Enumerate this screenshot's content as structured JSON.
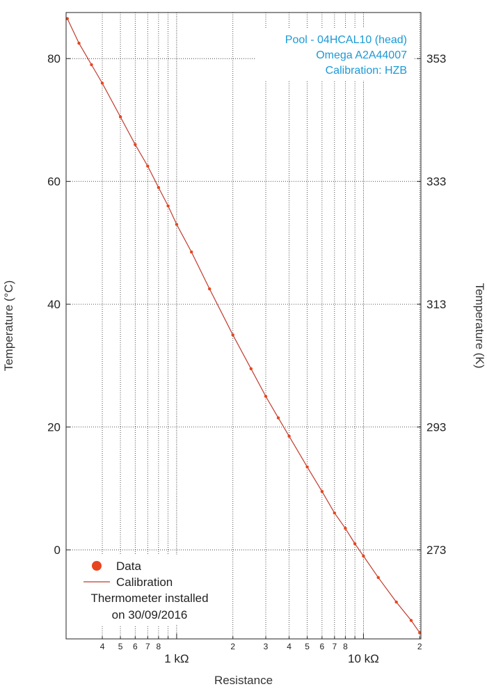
{
  "chart_data": {
    "type": "line",
    "annotations": [
      "Pool - 04HCAL10 (head)",
      "Omega A2A44007",
      "Calibration: HZB"
    ],
    "xlabel": "Resistance",
    "ylabel": "Temperature (°C)",
    "y2label": "Temperature (K)",
    "x_scale": "log",
    "xlim": [
      256,
      20300
    ],
    "ylim": [
      -14.5,
      87.5
    ],
    "grid": true,
    "legend_position": "bottom-left",
    "x_major_ticks": [
      {
        "value": 1000,
        "label": "1 kΩ"
      },
      {
        "value": 10000,
        "label": "10 kΩ"
      }
    ],
    "x_minor_ticks": [
      {
        "value": 400,
        "label": "4"
      },
      {
        "value": 500,
        "label": "5"
      },
      {
        "value": 600,
        "label": "6"
      },
      {
        "value": 700,
        "label": "7"
      },
      {
        "value": 800,
        "label": "8"
      },
      {
        "value": 900,
        "label": ""
      },
      {
        "value": 2000,
        "label": "2"
      },
      {
        "value": 3000,
        "label": "3"
      },
      {
        "value": 4000,
        "label": "4"
      },
      {
        "value": 5000,
        "label": "5"
      },
      {
        "value": 6000,
        "label": "6"
      },
      {
        "value": 7000,
        "label": "7"
      },
      {
        "value": 8000,
        "label": "8"
      },
      {
        "value": 9000,
        "label": ""
      },
      {
        "value": 20000,
        "label": "2"
      }
    ],
    "y_ticks": [
      0,
      20,
      40,
      60,
      80
    ],
    "y2_ticks": [
      {
        "value": 0,
        "label": "273"
      },
      {
        "value": 20,
        "label": "293"
      },
      {
        "value": 40,
        "label": "313"
      },
      {
        "value": 60,
        "label": "333"
      },
      {
        "value": 80,
        "label": "353"
      }
    ],
    "series": [
      {
        "name": "Data",
        "marker": "circle",
        "color": "#e8451e",
        "points": [
          {
            "x": 260,
            "y": 86.5
          },
          {
            "x": 300,
            "y": 82.5
          },
          {
            "x": 350,
            "y": 79.0
          },
          {
            "x": 400,
            "y": 76.0
          },
          {
            "x": 500,
            "y": 70.5
          },
          {
            "x": 600,
            "y": 66.0
          },
          {
            "x": 700,
            "y": 62.5
          },
          {
            "x": 800,
            "y": 59.0
          },
          {
            "x": 900,
            "y": 56.0
          },
          {
            "x": 1000,
            "y": 53.0
          },
          {
            "x": 1200,
            "y": 48.5
          },
          {
            "x": 1500,
            "y": 42.5
          },
          {
            "x": 2000,
            "y": 35.0
          },
          {
            "x": 2500,
            "y": 29.5
          },
          {
            "x": 3000,
            "y": 25.0
          },
          {
            "x": 3500,
            "y": 21.5
          },
          {
            "x": 4000,
            "y": 18.5
          },
          {
            "x": 5000,
            "y": 13.5
          },
          {
            "x": 6000,
            "y": 9.5
          },
          {
            "x": 7000,
            "y": 6.0
          },
          {
            "x": 8000,
            "y": 3.5
          },
          {
            "x": 9000,
            "y": 1.0
          },
          {
            "x": 10000,
            "y": -1.0
          },
          {
            "x": 12000,
            "y": -4.5
          },
          {
            "x": 15000,
            "y": -8.5
          },
          {
            "x": 18000,
            "y": -11.5
          },
          {
            "x": 20000,
            "y": -13.5
          }
        ]
      },
      {
        "name": "Calibration",
        "marker": "line",
        "color": "#c0392b"
      }
    ],
    "legend_note": [
      "Thermometer installed",
      "on 30/09/2016"
    ]
  }
}
